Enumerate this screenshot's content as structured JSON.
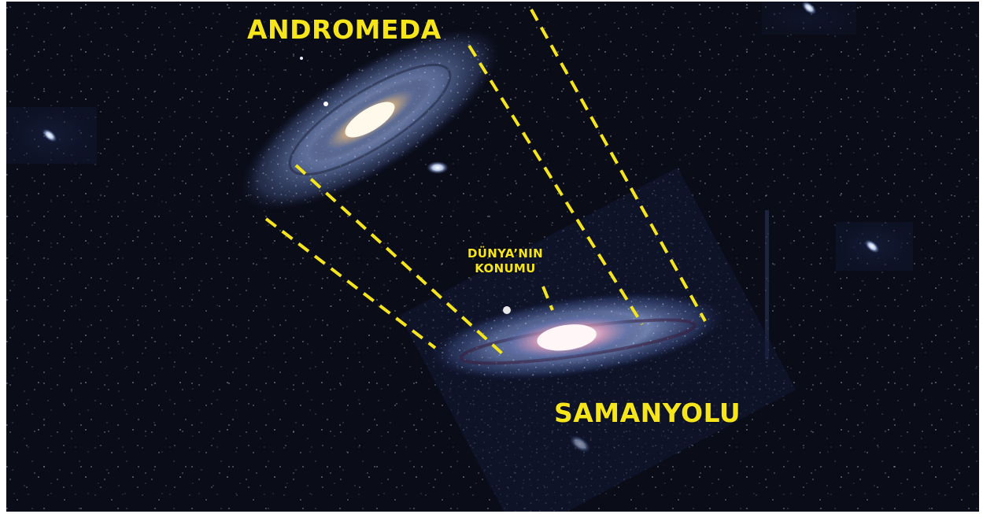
{
  "labels": {
    "andromeda": "ANDROMEDA",
    "milky_way": "SAMANYOLU",
    "earth_location_line1": "DÜNYA’NIN",
    "earth_location_line2": "KONUMU"
  },
  "colors": {
    "background": "#0a0c18",
    "label_yellow": "#f6e51a",
    "dashed_line": "#f6e51a"
  }
}
